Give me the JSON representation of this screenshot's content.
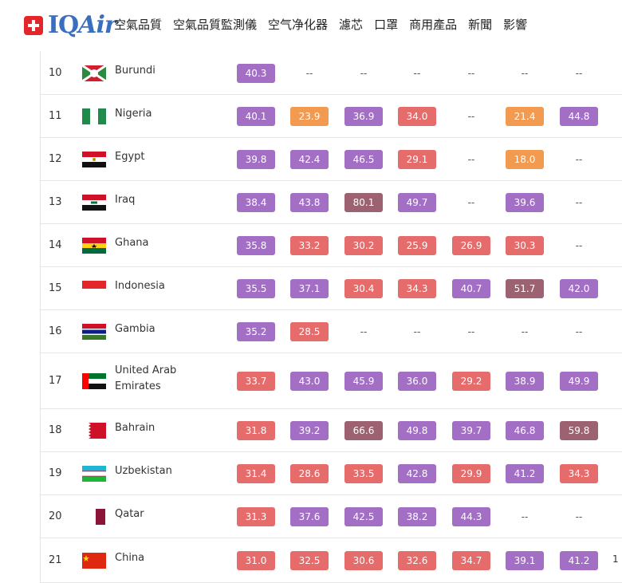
{
  "brand": {
    "name_iq": "IQ",
    "name_air": "Air"
  },
  "nav": [
    "空氣品質",
    "空氣品質監測儀",
    "空气净化器",
    "濾芯",
    "口罩",
    "商用產品",
    "新聞",
    "影響"
  ],
  "colors": {
    "purple": "#a26fc5",
    "red": "#e66b6b",
    "orange": "#f19a50",
    "maroon": "#9c6271"
  },
  "rows": [
    {
      "rank": "10",
      "country": "Burundi",
      "values": [
        {
          "v": "40.3",
          "c": "purple"
        },
        {
          "v": "--"
        },
        {
          "v": "--"
        },
        {
          "v": "--"
        },
        {
          "v": "--"
        },
        {
          "v": "--"
        },
        {
          "v": "--"
        }
      ]
    },
    {
      "rank": "11",
      "country": "Nigeria",
      "values": [
        {
          "v": "40.1",
          "c": "purple"
        },
        {
          "v": "23.9",
          "c": "orange"
        },
        {
          "v": "36.9",
          "c": "purple"
        },
        {
          "v": "34.0",
          "c": "red"
        },
        {
          "v": "--"
        },
        {
          "v": "21.4",
          "c": "orange"
        },
        {
          "v": "44.8",
          "c": "purple"
        }
      ]
    },
    {
      "rank": "12",
      "country": "Egypt",
      "values": [
        {
          "v": "39.8",
          "c": "purple"
        },
        {
          "v": "42.4",
          "c": "purple"
        },
        {
          "v": "46.5",
          "c": "purple"
        },
        {
          "v": "29.1",
          "c": "red"
        },
        {
          "v": "--"
        },
        {
          "v": "18.0",
          "c": "orange"
        },
        {
          "v": "--"
        }
      ]
    },
    {
      "rank": "13",
      "country": "Iraq",
      "values": [
        {
          "v": "38.4",
          "c": "purple"
        },
        {
          "v": "43.8",
          "c": "purple"
        },
        {
          "v": "80.1",
          "c": "maroon"
        },
        {
          "v": "49.7",
          "c": "purple"
        },
        {
          "v": "--"
        },
        {
          "v": "39.6",
          "c": "purple"
        },
        {
          "v": "--"
        }
      ]
    },
    {
      "rank": "14",
      "country": "Ghana",
      "values": [
        {
          "v": "35.8",
          "c": "purple"
        },
        {
          "v": "33.2",
          "c": "red"
        },
        {
          "v": "30.2",
          "c": "red"
        },
        {
          "v": "25.9",
          "c": "red"
        },
        {
          "v": "26.9",
          "c": "red"
        },
        {
          "v": "30.3",
          "c": "red"
        },
        {
          "v": "--"
        }
      ]
    },
    {
      "rank": "15",
      "country": "Indonesia",
      "values": [
        {
          "v": "35.5",
          "c": "purple"
        },
        {
          "v": "37.1",
          "c": "purple"
        },
        {
          "v": "30.4",
          "c": "red"
        },
        {
          "v": "34.3",
          "c": "red"
        },
        {
          "v": "40.7",
          "c": "purple"
        },
        {
          "v": "51.7",
          "c": "maroon"
        },
        {
          "v": "42.0",
          "c": "purple"
        }
      ]
    },
    {
      "rank": "16",
      "country": "Gambia",
      "values": [
        {
          "v": "35.2",
          "c": "purple"
        },
        {
          "v": "28.5",
          "c": "red"
        },
        {
          "v": "--"
        },
        {
          "v": "--"
        },
        {
          "v": "--"
        },
        {
          "v": "--"
        },
        {
          "v": "--"
        }
      ]
    },
    {
      "rank": "17",
      "country": "United Arab Emirates",
      "values": [
        {
          "v": "33.7",
          "c": "red"
        },
        {
          "v": "43.0",
          "c": "purple"
        },
        {
          "v": "45.9",
          "c": "purple"
        },
        {
          "v": "36.0",
          "c": "purple"
        },
        {
          "v": "29.2",
          "c": "red"
        },
        {
          "v": "38.9",
          "c": "purple"
        },
        {
          "v": "49.9",
          "c": "purple"
        }
      ]
    },
    {
      "rank": "18",
      "country": "Bahrain",
      "values": [
        {
          "v": "31.8",
          "c": "red"
        },
        {
          "v": "39.2",
          "c": "purple"
        },
        {
          "v": "66.6",
          "c": "maroon"
        },
        {
          "v": "49.8",
          "c": "purple"
        },
        {
          "v": "39.7",
          "c": "purple"
        },
        {
          "v": "46.8",
          "c": "purple"
        },
        {
          "v": "59.8",
          "c": "maroon"
        }
      ]
    },
    {
      "rank": "19",
      "country": "Uzbekistan",
      "values": [
        {
          "v": "31.4",
          "c": "red"
        },
        {
          "v": "28.6",
          "c": "red"
        },
        {
          "v": "33.5",
          "c": "red"
        },
        {
          "v": "42.8",
          "c": "purple"
        },
        {
          "v": "29.9",
          "c": "red"
        },
        {
          "v": "41.2",
          "c": "purple"
        },
        {
          "v": "34.3",
          "c": "red"
        }
      ]
    },
    {
      "rank": "20",
      "country": "Qatar",
      "values": [
        {
          "v": "31.3",
          "c": "red"
        },
        {
          "v": "37.6",
          "c": "purple"
        },
        {
          "v": "42.5",
          "c": "purple"
        },
        {
          "v": "38.2",
          "c": "purple"
        },
        {
          "v": "44.3",
          "c": "purple"
        },
        {
          "v": "--"
        },
        {
          "v": "--"
        }
      ]
    },
    {
      "rank": "21",
      "country": "China",
      "values": [
        {
          "v": "31.0",
          "c": "red"
        },
        {
          "v": "32.5",
          "c": "red"
        },
        {
          "v": "30.6",
          "c": "red"
        },
        {
          "v": "32.6",
          "c": "red"
        },
        {
          "v": "34.7",
          "c": "red"
        },
        {
          "v": "39.1",
          "c": "purple"
        },
        {
          "v": "41.2",
          "c": "purple"
        }
      ]
    }
  ],
  "edge_text": "1"
}
